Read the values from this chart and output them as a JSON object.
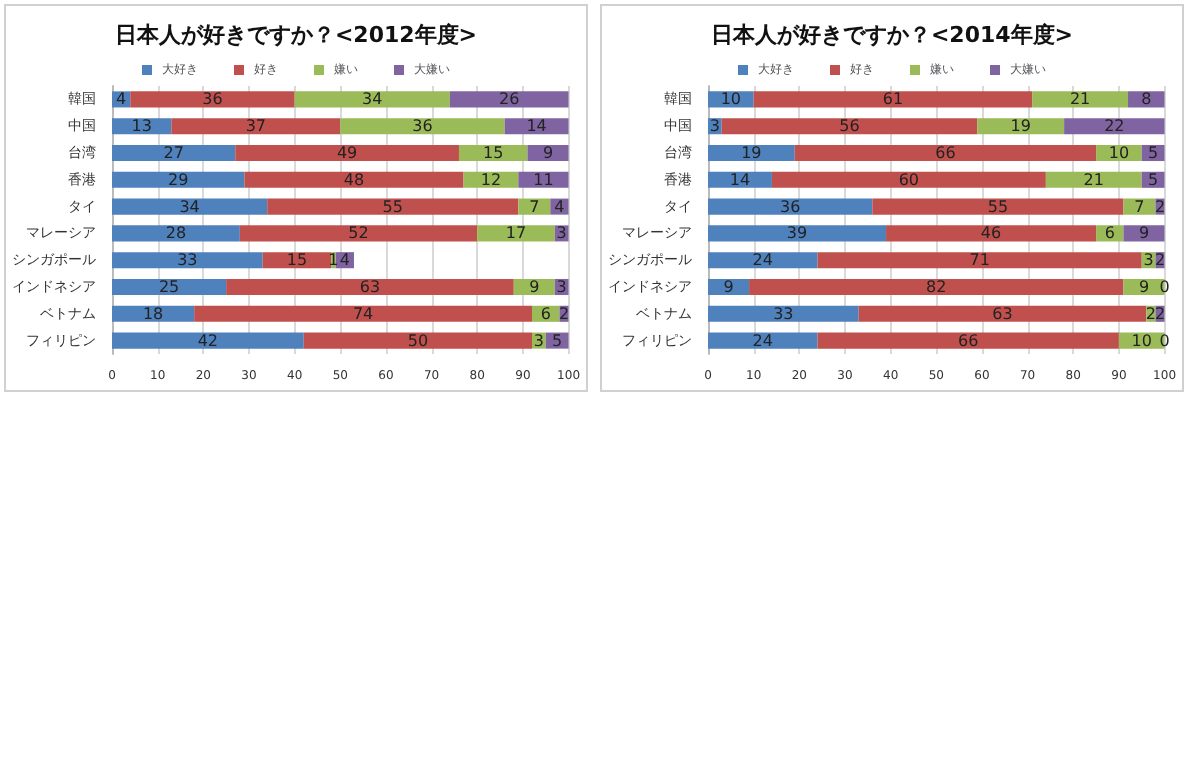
{
  "chart_data": [
    {
      "type": "bar",
      "orientation": "horizontal",
      "stacked": true,
      "title": "日本人が好きですか？<2012年度>",
      "categories": [
        "韓国",
        "中国",
        "台湾",
        "香港",
        "タイ",
        "マレーシア",
        "シンガポール",
        "インドネシア",
        "ベトナム",
        "フィリピン"
      ],
      "series": [
        {
          "name": "大好き",
          "color": "#4f81bd",
          "values": [
            4,
            13,
            27,
            29,
            34,
            28,
            33,
            25,
            18,
            42
          ]
        },
        {
          "name": "好き",
          "color": "#c0504d",
          "values": [
            36,
            37,
            49,
            48,
            55,
            52,
            15,
            63,
            74,
            50
          ]
        },
        {
          "name": "嫌い",
          "color": "#9bbb59",
          "values": [
            34,
            36,
            15,
            12,
            7,
            17,
            1,
            9,
            6,
            3
          ]
        },
        {
          "name": "大嫌い",
          "color": "#8064a2",
          "values": [
            26,
            14,
            9,
            11,
            4,
            3,
            4,
            3,
            2,
            5
          ]
        }
      ],
      "xlim": [
        0,
        100
      ],
      "xticks": [
        0,
        10,
        20,
        30,
        40,
        50,
        60,
        70,
        80,
        90,
        100
      ],
      "grid": "x",
      "legend": "top",
      "data_labels": true
    },
    {
      "type": "bar",
      "orientation": "horizontal",
      "stacked": true,
      "title": "日本人が好きですか？<2014年度>",
      "categories": [
        "韓国",
        "中国",
        "台湾",
        "香港",
        "タイ",
        "マレーシア",
        "シンガポール",
        "インドネシア",
        "ベトナム",
        "フィリピン"
      ],
      "series": [
        {
          "name": "大好き",
          "color": "#4f81bd",
          "values": [
            10,
            3,
            19,
            14,
            36,
            39,
            24,
            9,
            33,
            24
          ]
        },
        {
          "name": "好き",
          "color": "#c0504d",
          "values": [
            61,
            56,
            66,
            60,
            55,
            46,
            71,
            82,
            63,
            66
          ]
        },
        {
          "name": "嫌い",
          "color": "#9bbb59",
          "values": [
            21,
            19,
            10,
            21,
            7,
            6,
            3,
            9,
            2,
            10
          ]
        },
        {
          "name": "大嫌い",
          "color": "#8064a2",
          "values": [
            8,
            22,
            5,
            5,
            2,
            9,
            2,
            0,
            2,
            0
          ]
        }
      ],
      "xlim": [
        0,
        100
      ],
      "xticks": [
        0,
        10,
        20,
        30,
        40,
        50,
        60,
        70,
        80,
        90,
        100
      ],
      "grid": "x",
      "legend": "top",
      "data_labels": true
    }
  ]
}
